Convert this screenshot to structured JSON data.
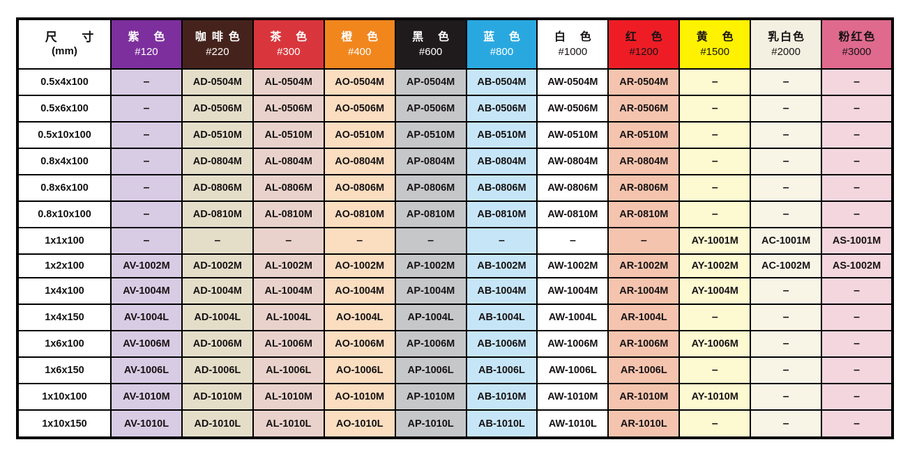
{
  "table": {
    "size_header": {
      "title": "尺寸",
      "unit": "(mm)"
    },
    "empty_marker": "–",
    "columns": [
      {
        "name": "紫色",
        "grit": "#120",
        "header_bg": "#7D2F9D",
        "header_fg": "#FFFFFF",
        "body_bg": "#D8CBE4"
      },
      {
        "name": "咖啡色",
        "grit": "#220",
        "header_bg": "#45231C",
        "header_fg": "#FFFFFF",
        "body_bg": "#E4DEC9"
      },
      {
        "name": "茶色",
        "grit": "#300",
        "header_bg": "#D8363C",
        "header_fg": "#FFFFFF",
        "body_bg": "#E9D2CB"
      },
      {
        "name": "橙色",
        "grit": "#400",
        "header_bg": "#F1861D",
        "header_fg": "#FFFFFF",
        "body_bg": "#FBDDC0"
      },
      {
        "name": "黑色",
        "grit": "#600",
        "header_bg": "#1F1B1C",
        "header_fg": "#FFFFFF",
        "body_bg": "#C6C7C9"
      },
      {
        "name": "蓝色",
        "grit": "#800",
        "header_bg": "#29A8E0",
        "header_fg": "#FFFFFF",
        "body_bg": "#C6E6F8"
      },
      {
        "name": "白色",
        "grit": "#1000",
        "header_bg": "#FFFFFF",
        "header_fg": "#161213",
        "body_bg": "#FFFFFF"
      },
      {
        "name": "红色",
        "grit": "#1200",
        "header_bg": "#EE1D25",
        "header_fg": "#161213",
        "body_bg": "#F5C4AE"
      },
      {
        "name": "黄色",
        "grit": "#1500",
        "header_bg": "#FFF200",
        "header_fg": "#161213",
        "body_bg": "#FDF9D1"
      },
      {
        "name": "乳白色",
        "grit": "#2000",
        "header_bg": "#F4F0E1",
        "header_fg": "#161213",
        "body_bg": "#F8F5E7"
      },
      {
        "name": "粉红色",
        "grit": "#3000",
        "header_bg": "#DF6A8E",
        "header_fg": "#161213",
        "body_bg": "#F4D6DF"
      }
    ],
    "rows": [
      {
        "size": "0.5x4x100",
        "cells": [
          "–",
          "AD-0504M",
          "AL-0504M",
          "AO-0504M",
          "AP-0504M",
          "AB-0504M",
          "AW-0504M",
          "AR-0504M",
          "–",
          "–",
          "–"
        ]
      },
      {
        "size": "0.5x6x100",
        "cells": [
          "–",
          "AD-0506M",
          "AL-0506M",
          "AO-0506M",
          "AP-0506M",
          "AB-0506M",
          "AW-0506M",
          "AR-0506M",
          "–",
          "–",
          "–"
        ]
      },
      {
        "size": "0.5x10x100",
        "cells": [
          "–",
          "AD-0510M",
          "AL-0510M",
          "AO-0510M",
          "AP-0510M",
          "AB-0510M",
          "AW-0510M",
          "AR-0510M",
          "–",
          "–",
          "–"
        ]
      },
      {
        "size": "0.8x4x100",
        "cells": [
          "–",
          "AD-0804M",
          "AL-0804M",
          "AO-0804M",
          "AP-0804M",
          "AB-0804M",
          "AW-0804M",
          "AR-0804M",
          "–",
          "–",
          "–"
        ]
      },
      {
        "size": "0.8x6x100",
        "cells": [
          "–",
          "AD-0806M",
          "AL-0806M",
          "AO-0806M",
          "AP-0806M",
          "AB-0806M",
          "AW-0806M",
          "AR-0806M",
          "–",
          "–",
          "–"
        ]
      },
      {
        "size": "0.8x10x100",
        "cells": [
          "–",
          "AD-0810M",
          "AL-0810M",
          "AO-0810M",
          "AP-0810M",
          "AB-0810M",
          "AW-0810M",
          "AR-0810M",
          "–",
          "–",
          "–"
        ]
      },
      {
        "size": "1x1x100",
        "cells": [
          "–",
          "–",
          "–",
          "–",
          "–",
          "–",
          "–",
          "–",
          "AY-1001M",
          "AC-1001M",
          "AS-1001M"
        ]
      },
      {
        "size": "1x2x100",
        "cells": [
          "AV-1002M",
          "AD-1002M",
          "AL-1002M",
          "AO-1002M",
          "AP-1002M",
          "AB-1002M",
          "AW-1002M",
          "AR-1002M",
          "AY-1002M",
          "AC-1002M",
          "AS-1002M"
        ]
      },
      {
        "size": "1x4x100",
        "cells": [
          "AV-1004M",
          "AD-1004M",
          "AL-1004M",
          "AO-1004M",
          "AP-1004M",
          "AB-1004M",
          "AW-1004M",
          "AR-1004M",
          "AY-1004M",
          "–",
          "–"
        ]
      },
      {
        "size": "1x4x150",
        "cells": [
          "AV-1004L",
          "AD-1004L",
          "AL-1004L",
          "AO-1004L",
          "AP-1004L",
          "AB-1004L",
          "AW-1004L",
          "AR-1004L",
          "–",
          "–",
          "–"
        ]
      },
      {
        "size": "1x6x100",
        "cells": [
          "AV-1006M",
          "AD-1006M",
          "AL-1006M",
          "AO-1006M",
          "AP-1006M",
          "AB-1006M",
          "AW-1006M",
          "AR-1006M",
          "AY-1006M",
          "–",
          "–"
        ]
      },
      {
        "size": "1x6x150",
        "cells": [
          "AV-1006L",
          "AD-1006L",
          "AL-1006L",
          "AO-1006L",
          "AP-1006L",
          "AB-1006L",
          "AW-1006L",
          "AR-1006L",
          "–",
          "–",
          "–"
        ]
      },
      {
        "size": "1x10x100",
        "cells": [
          "AV-1010M",
          "AD-1010M",
          "AL-1010M",
          "AO-1010M",
          "AP-1010M",
          "AB-1010M",
          "AW-1010M",
          "AR-1010M",
          "AY-1010M",
          "–",
          "–"
        ]
      },
      {
        "size": "1x10x150",
        "cells": [
          "AV-1010L",
          "AD-1010L",
          "AL-1010L",
          "AO-1010L",
          "AP-1010L",
          "AB-1010L",
          "AW-1010L",
          "AR-1010L",
          "–",
          "–",
          "–"
        ]
      }
    ]
  }
}
